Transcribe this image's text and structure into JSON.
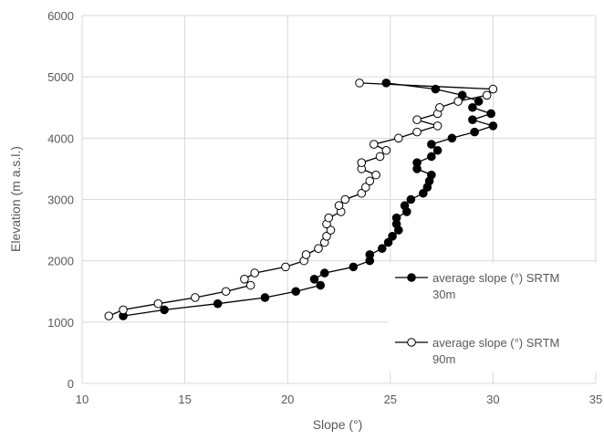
{
  "chart_data": {
    "type": "scatter",
    "xlabel": "Slope (°)",
    "ylabel": "Elevation (m a.s.l.)",
    "xlim": [
      10,
      35
    ],
    "ylim": [
      0,
      6000
    ],
    "xticks": [
      "10",
      "15",
      "20",
      "25",
      "30",
      "35"
    ],
    "yticks": [
      "0",
      "1000",
      "2000",
      "3000",
      "4000",
      "5000",
      "6000"
    ],
    "grid": "vertical and horizontal",
    "legend_position": "right",
    "series": [
      {
        "name": "average slope (°) SRTM 30m",
        "marker": "filled-circle",
        "color": "#000000",
        "points": [
          [
            12.0,
            1100
          ],
          [
            14.0,
            1200
          ],
          [
            16.6,
            1300
          ],
          [
            18.9,
            1400
          ],
          [
            20.4,
            1500
          ],
          [
            21.6,
            1600
          ],
          [
            21.3,
            1700
          ],
          [
            21.8,
            1800
          ],
          [
            23.2,
            1900
          ],
          [
            24.0,
            2000
          ],
          [
            24.0,
            2100
          ],
          [
            24.6,
            2200
          ],
          [
            24.9,
            2300
          ],
          [
            25.1,
            2400
          ],
          [
            25.4,
            2500
          ],
          [
            25.3,
            2600
          ],
          [
            25.3,
            2700
          ],
          [
            25.8,
            2800
          ],
          [
            25.7,
            2900
          ],
          [
            26.0,
            3000
          ],
          [
            26.6,
            3100
          ],
          [
            26.8,
            3200
          ],
          [
            26.9,
            3300
          ],
          [
            27.0,
            3400
          ],
          [
            26.3,
            3500
          ],
          [
            26.3,
            3600
          ],
          [
            27.0,
            3700
          ],
          [
            27.3,
            3800
          ],
          [
            27.0,
            3900
          ],
          [
            28.0,
            4000
          ],
          [
            29.1,
            4100
          ],
          [
            30.0,
            4200
          ],
          [
            29.0,
            4300
          ],
          [
            29.9,
            4400
          ],
          [
            29.0,
            4500
          ],
          [
            29.3,
            4600
          ],
          [
            28.5,
            4700
          ],
          [
            27.2,
            4800
          ],
          [
            24.8,
            4900
          ]
        ]
      },
      {
        "name": "average slope (°) SRTM 90m",
        "marker": "open-circle",
        "color": "#000000",
        "points": [
          [
            11.3,
            1100
          ],
          [
            12.0,
            1200
          ],
          [
            13.7,
            1300
          ],
          [
            15.5,
            1400
          ],
          [
            17.0,
            1500
          ],
          [
            18.2,
            1600
          ],
          [
            17.9,
            1700
          ],
          [
            18.4,
            1800
          ],
          [
            19.9,
            1900
          ],
          [
            20.8,
            2000
          ],
          [
            20.9,
            2100
          ],
          [
            21.5,
            2200
          ],
          [
            21.8,
            2300
          ],
          [
            21.9,
            2400
          ],
          [
            22.1,
            2500
          ],
          [
            21.9,
            2600
          ],
          [
            22.0,
            2700
          ],
          [
            22.6,
            2800
          ],
          [
            22.5,
            2900
          ],
          [
            22.8,
            3000
          ],
          [
            23.6,
            3100
          ],
          [
            23.8,
            3200
          ],
          [
            24.0,
            3300
          ],
          [
            24.3,
            3400
          ],
          [
            23.6,
            3500
          ],
          [
            23.6,
            3600
          ],
          [
            24.5,
            3700
          ],
          [
            24.8,
            3800
          ],
          [
            24.2,
            3900
          ],
          [
            25.4,
            4000
          ],
          [
            26.3,
            4100
          ],
          [
            27.3,
            4200
          ],
          [
            26.3,
            4300
          ],
          [
            27.3,
            4400
          ],
          [
            27.4,
            4500
          ],
          [
            28.3,
            4600
          ],
          [
            29.7,
            4700
          ],
          [
            30.0,
            4800
          ],
          [
            23.5,
            4900
          ]
        ]
      }
    ]
  }
}
